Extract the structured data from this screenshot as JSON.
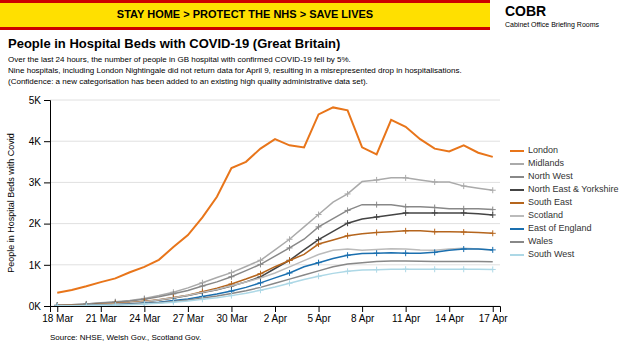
{
  "chart_data": {
    "type": "line",
    "title": "People in Hospital Beds with COVID-19 (Great Britain)",
    "subtitle": [
      "Over the last 24 hours, the number of people in GB hospital with confirmed COVID-19 fell by 5%.",
      "Nine hospitals, including London Nightingale did not return data for April 9, resulting in a misrepresented drop in hospitalisations.",
      "(Confidence: a new categorisation has been added to an existing high quality administrative data set)."
    ],
    "annotations": [
      "STAY HOME > PROTECT THE NHS > SAVE LIVES",
      "COBR",
      "Cabinet Office Briefing Rooms",
      "Source: NHSE, Welsh Gov., Scotland Gov."
    ],
    "ylabel": "People in Hospital Beds with Covid",
    "categories": [
      "18 Mar",
      null,
      null,
      "21 Mar",
      null,
      null,
      "24 Mar",
      null,
      null,
      "27 Mar",
      null,
      null,
      "30 Mar",
      null,
      null,
      "2 Apr",
      null,
      null,
      "5 Apr",
      null,
      null,
      "8 Apr",
      null,
      null,
      "11 Apr",
      null,
      null,
      "14 Apr",
      null,
      null,
      "17 Apr"
    ],
    "series": [
      {
        "name": "London",
        "color": "#E8751A",
        "values": [
          320,
          390,
          480,
          580,
          670,
          820,
          950,
          1120,
          1430,
          1720,
          2150,
          2650,
          3350,
          3500,
          3820,
          4050,
          3900,
          3850,
          4650,
          4820,
          4750,
          3850,
          3680,
          4520,
          4350,
          4050,
          3820,
          3750,
          3900,
          3720,
          3620
        ]
      },
      {
        "name": "Midlands",
        "color": "#AAAAAA",
        "marker": "plus",
        "values": [
          20,
          30,
          50,
          80,
          105,
          135,
          185,
          255,
          335,
          440,
          565,
          690,
          810,
          960,
          1110,
          1360,
          1620,
          1920,
          2220,
          2520,
          2720,
          3020,
          3060,
          3110,
          3110,
          3060,
          3010,
          3010,
          2910,
          2860,
          2810
        ]
      },
      {
        "name": "North West",
        "color": "#888888",
        "marker": "plus",
        "values": [
          20,
          30,
          50,
          72,
          92,
          122,
          165,
          225,
          295,
          375,
          485,
          585,
          710,
          860,
          1010,
          1210,
          1410,
          1620,
          1920,
          2120,
          2320,
          2460,
          2460,
          2460,
          2410,
          2410,
          2390,
          2360,
          2360,
          2360,
          2340
        ]
      },
      {
        "name": "North East & Yorkshire",
        "color": "#444444",
        "marker": "plus",
        "values": [
          10,
          16,
          26,
          42,
          57,
          78,
          104,
          145,
          196,
          256,
          326,
          396,
          486,
          586,
          706,
          910,
          1110,
          1360,
          1610,
          1810,
          2010,
          2110,
          2160,
          2210,
          2260,
          2260,
          2260,
          2260,
          2260,
          2240,
          2210
        ]
      },
      {
        "name": "South East",
        "color": "#B5651D",
        "marker": "plus",
        "values": [
          10,
          16,
          26,
          42,
          62,
          82,
          114,
          154,
          204,
          264,
          344,
          434,
          534,
          654,
          784,
          954,
          1104,
          1254,
          1504,
          1604,
          1704,
          1754,
          1784,
          1804,
          1824,
          1824,
          1804,
          1804,
          1794,
          1784,
          1764
        ]
      },
      {
        "name": "Scotland",
        "color": "#BBBBBB",
        "values": [
          10,
          15,
          21,
          36,
          51,
          71,
          101,
          151,
          201,
          261,
          331,
          401,
          491,
          581,
          681,
          801,
          951,
          1101,
          1251,
          1351,
          1381,
          1351,
          1371,
          1391,
          1381,
          1361,
          1351,
          1381,
          1401,
          1381,
          1361
        ]
      },
      {
        "name": "East of England",
        "color": "#1A6FAF",
        "marker": "plus",
        "values": [
          5,
          8,
          13,
          21,
          31,
          46,
          66,
          91,
          131,
          172,
          232,
          292,
          362,
          452,
          562,
          682,
          802,
          952,
          1052,
          1152,
          1232,
          1272,
          1282,
          1292,
          1282,
          1282,
          1302,
          1352,
          1382,
          1382,
          1362
        ]
      },
      {
        "name": "Wales",
        "color": "#888888",
        "values": [
          5,
          8,
          13,
          19,
          29,
          41,
          59,
          81,
          111,
          147,
          192,
          242,
          302,
          372,
          452,
          552,
          652,
          752,
          852,
          952,
          1022,
          1052,
          1082,
          1092,
          1092,
          1087,
          1082,
          1082,
          1082,
          1082,
          1077
        ]
      },
      {
        "name": "South West",
        "color": "#ADD8E6",
        "marker": "plus",
        "values": [
          5,
          7,
          11,
          16,
          23,
          33,
          47,
          66,
          91,
          122,
          162,
          202,
          252,
          312,
          382,
          462,
          552,
          642,
          722,
          792,
          842,
          872,
          882,
          892,
          892,
          892,
          892,
          892,
          892,
          892,
          887
        ]
      }
    ],
    "ylim": [
      0,
      5000
    ],
    "yticks": [
      {
        "value": 0,
        "label": "0K"
      },
      {
        "value": 1000,
        "label": "1K"
      },
      {
        "value": 2000,
        "label": "2K"
      },
      {
        "value": 3000,
        "label": "3K"
      },
      {
        "value": 4000,
        "label": "4K"
      },
      {
        "value": 5000,
        "label": "5K"
      }
    ],
    "grid": true,
    "legend": "right"
  }
}
